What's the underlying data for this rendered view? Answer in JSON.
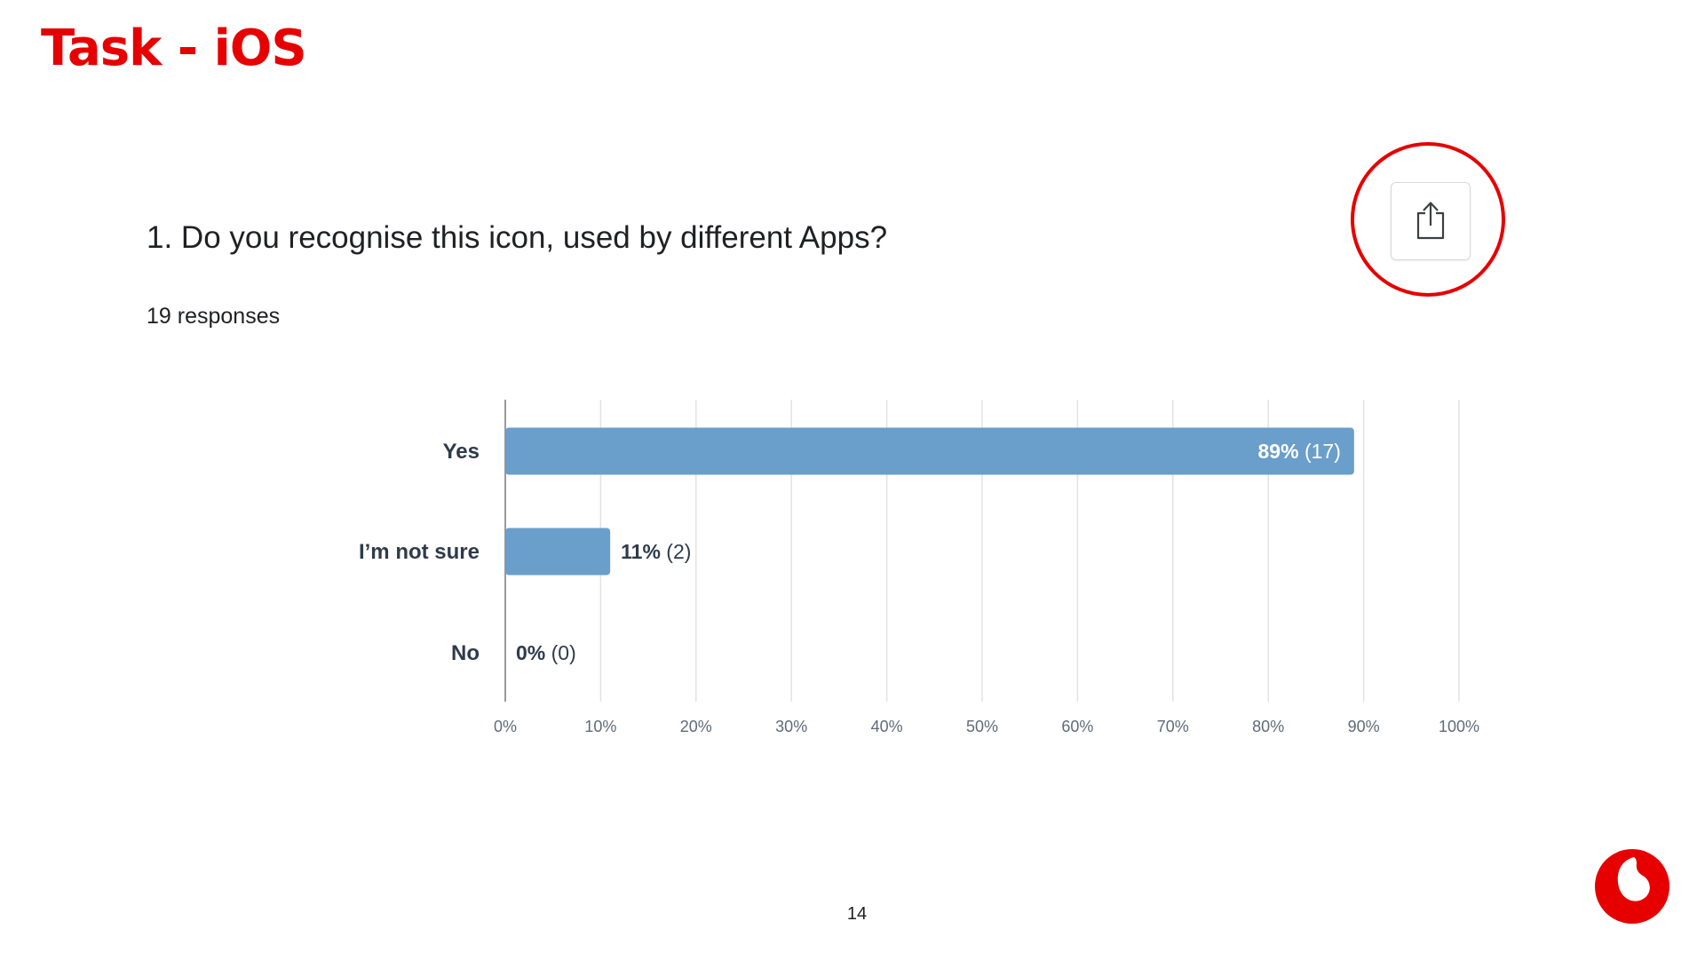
{
  "slide": {
    "title": "Task - iOS",
    "page_number": "14"
  },
  "survey": {
    "question": "1. Do you recognise this icon, used by different Apps?",
    "responses": "19 responses"
  },
  "colors": {
    "brand_red": "#e60000",
    "bar": "#6a9ecb",
    "grid": "#e3e3e3",
    "axis": "#9a9a9a",
    "label_text": "#2f3b4c",
    "tick_text": "#5f6b7a",
    "icon_stroke": "#3c4043"
  },
  "icons": {
    "share": "share-icon",
    "logo": "vodafone-logo"
  },
  "chart_data": {
    "type": "bar",
    "orientation": "horizontal",
    "title": "",
    "xlabel": "",
    "ylabel": "",
    "categories": [
      "Yes",
      "I’m not sure",
      "No"
    ],
    "values": [
      89,
      11,
      0
    ],
    "counts": [
      17,
      2,
      0
    ],
    "value_labels": [
      "89%",
      "11%",
      "0%"
    ],
    "count_labels": [
      "(17)",
      "(2)",
      "(0)"
    ],
    "xlim": [
      0,
      100
    ],
    "xticks": [
      "0%",
      "10%",
      "20%",
      "30%",
      "40%",
      "50%",
      "60%",
      "70%",
      "80%",
      "90%",
      "100%"
    ],
    "grid": true,
    "legend": "none"
  }
}
